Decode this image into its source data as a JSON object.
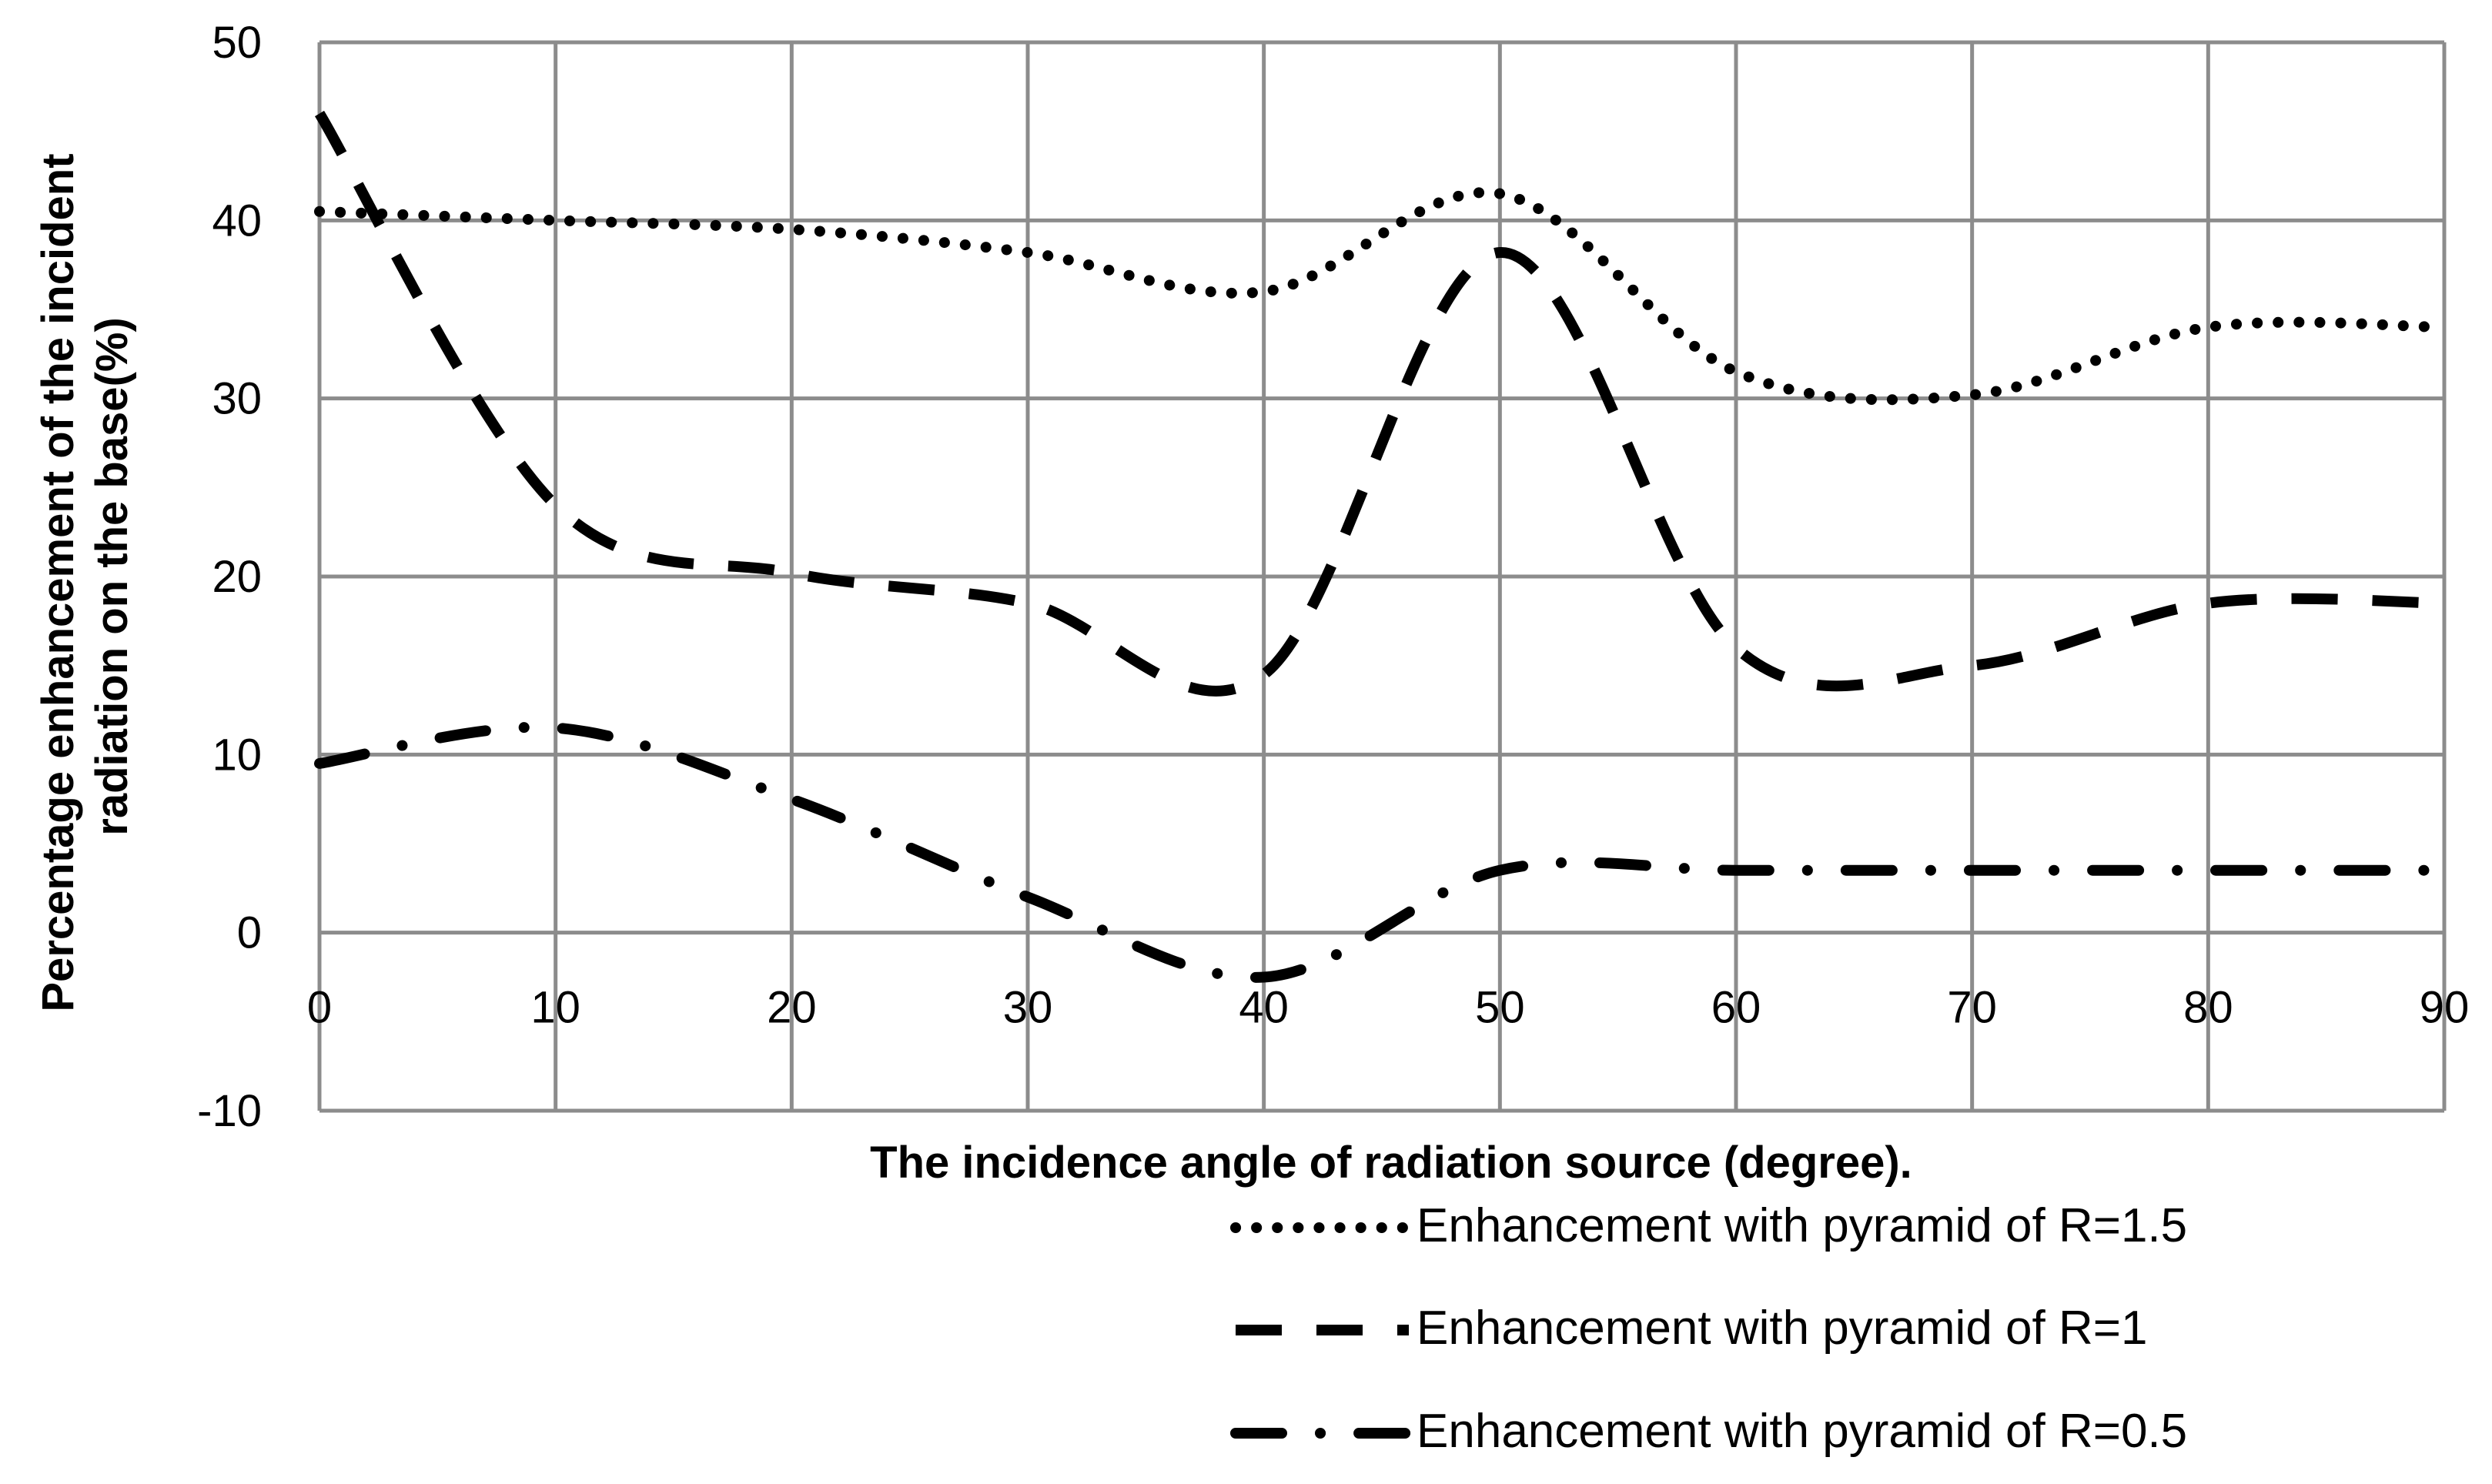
{
  "chart_data": {
    "type": "line",
    "title": "",
    "xlabel": "The incidence angle of radiation source (degree).",
    "ylabel_lines": [
      "Percentage enhancement of the incident",
      "radiation on the base(%)"
    ],
    "xlim": [
      0,
      90
    ],
    "ylim": [
      -10,
      50
    ],
    "xticks": [
      0,
      10,
      20,
      30,
      40,
      50,
      60,
      70,
      80,
      90
    ],
    "yticks": [
      -10,
      0,
      10,
      20,
      30,
      40,
      50
    ],
    "grid": true,
    "legend_position": "bottom-right",
    "x": [
      0,
      10,
      20,
      30,
      40,
      50,
      60,
      70,
      80,
      90
    ],
    "series": [
      {
        "name": "Enhancement with pyramid of R=1.5",
        "style": "dotted",
        "values": [
          40.5,
          40,
          39.5,
          38.2,
          36,
          41.5,
          31.5,
          30.2,
          34,
          34
        ]
      },
      {
        "name": "Enhancement with pyramid of R=1",
        "style": "dashed",
        "values": [
          46,
          24,
          20.2,
          18.5,
          14.5,
          38.2,
          16,
          15,
          18.5,
          18.5
        ]
      },
      {
        "name": "Enhancement with pyramid of R=0.5",
        "style": "dash-dot",
        "values": [
          9.5,
          11.5,
          7.5,
          2,
          -2.5,
          3.5,
          3.5,
          3.5,
          3.5,
          3.5
        ]
      }
    ]
  }
}
